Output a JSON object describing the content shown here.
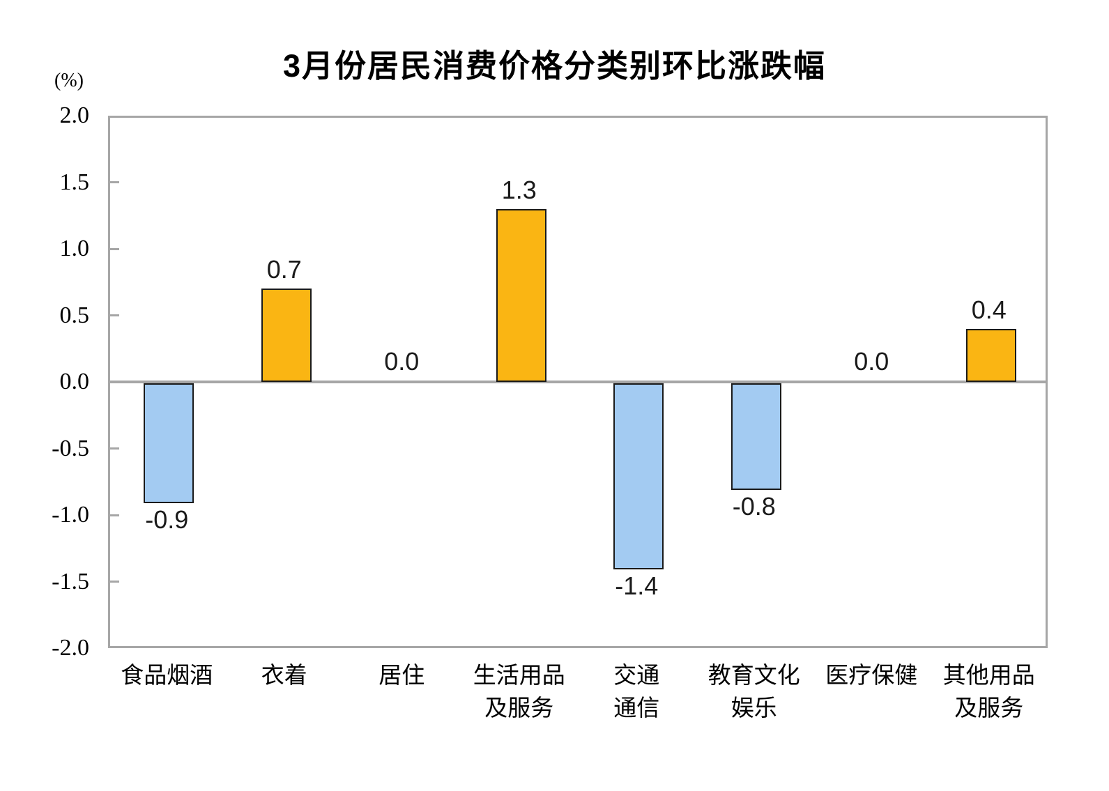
{
  "chart_data": {
    "type": "bar",
    "title": "3月份居民消费价格分类别环比涨跌幅",
    "unit_label": "(%)",
    "categories": [
      "食品烟酒",
      "衣着",
      "居住",
      "生活用品\n及服务",
      "交通\n通信",
      "教育文化\n娱乐",
      "医疗保健",
      "其他用品\n及服务"
    ],
    "values": [
      -0.9,
      0.7,
      0.0,
      1.3,
      -1.4,
      -0.8,
      0.0,
      0.4
    ],
    "value_labels": [
      "-0.9",
      "0.7",
      "0.0",
      "1.3",
      "-1.4",
      "-0.8",
      "0.0",
      "0.4"
    ],
    "ylabel": "",
    "xlabel": "",
    "ylim": [
      -2.0,
      2.0
    ],
    "y_tick_labels": [
      "2.0",
      "1.5",
      "1.0",
      "0.5",
      "0.0",
      "-0.5",
      "-1.0",
      "-1.5",
      "-2.0"
    ],
    "y_tick_values": [
      2.0,
      1.5,
      1.0,
      0.5,
      0.0,
      -0.5,
      -1.0,
      -1.5,
      -2.0
    ],
    "grid": false,
    "legend": "none",
    "colors": {
      "positive_fill": "#FAB513",
      "negative_fill": "#A3CBF2",
      "bar_border": "#1A1A1A",
      "axis_frame": "#A6A6A6",
      "zero_line": "#A6A6A6",
      "text": "#000000"
    }
  }
}
